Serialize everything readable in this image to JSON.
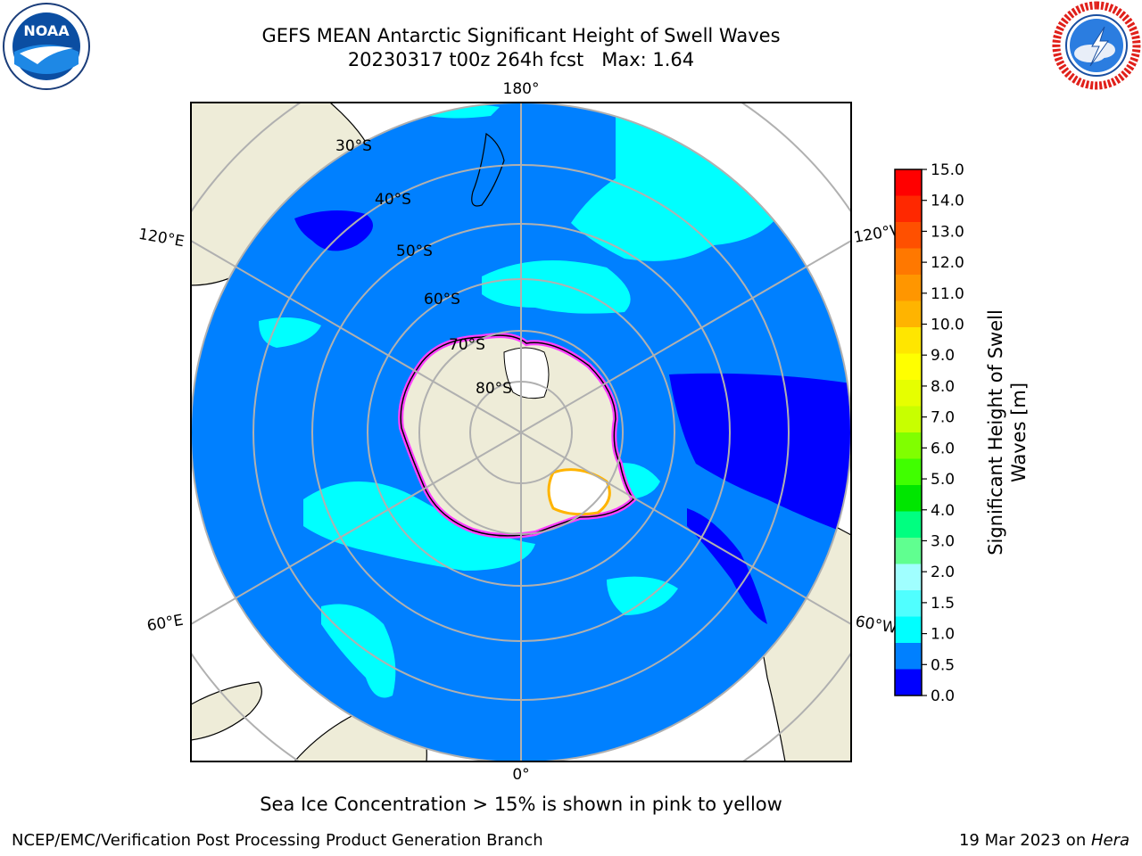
{
  "header": {
    "title": "GEFS MEAN Antarctic Significant Height of Swell Waves",
    "subtitle": "20230317 t00z 264h fcst   Max: 1.64"
  },
  "logos": {
    "left": "noaa-logo",
    "left_text": "NOAA",
    "right": "national-weather-service-logo",
    "right_text": "NATIONAL WEATHER SERVICE"
  },
  "map": {
    "projection": "south-polar-stereographic",
    "longitude_labels": {
      "top": "180°",
      "bottom": "0°",
      "left_upper": "120°E",
      "left_lower": "60°E",
      "right_upper": "120°W",
      "right_lower": "60°W"
    },
    "latitude_labels": [
      "30°S",
      "40°S",
      "50°S",
      "60°S",
      "70°S",
      "80°S"
    ],
    "colors": {
      "land": "#eeecd8",
      "ocean_low": "#0080ff",
      "ocean_lowest": "#0000ff",
      "ocean_mid": "#00ffff",
      "ice": "#ffffff",
      "ice_edge": "#ff40ff",
      "grid": "#b0b0b0"
    }
  },
  "colorbar": {
    "label": "Significant Height of Swell Waves [m]",
    "label_line1": "Significant Height of Swell",
    "label_line2": "Waves [m]",
    "ticks": [
      "15.0",
      "14.0",
      "13.0",
      "12.0",
      "11.0",
      "10.0",
      "9.0",
      "8.0",
      "7.0",
      "6.0",
      "5.0",
      "4.0",
      "3.0",
      "2.0",
      "1.5",
      "1.0",
      "0.5",
      "0.0"
    ],
    "bands": [
      "#ff0000",
      "#ff2800",
      "#ff5000",
      "#ff7800",
      "#ff9600",
      "#ffb400",
      "#ffe600",
      "#ffff00",
      "#e6ff00",
      "#c8ff00",
      "#80ff00",
      "#40ff00",
      "#00e600",
      "#00ff80",
      "#60ff90",
      "#a0ffff",
      "#50ffff",
      "#00ffff",
      "#0080ff",
      "#0000ff"
    ]
  },
  "note": "Sea Ice Concentration > 15% is shown in pink to yellow",
  "footer": {
    "left": "NCEP/EMC/Verification Post Processing Product Generation Branch",
    "right_date": "19 Mar 2023 on ",
    "right_host": "Hera"
  }
}
